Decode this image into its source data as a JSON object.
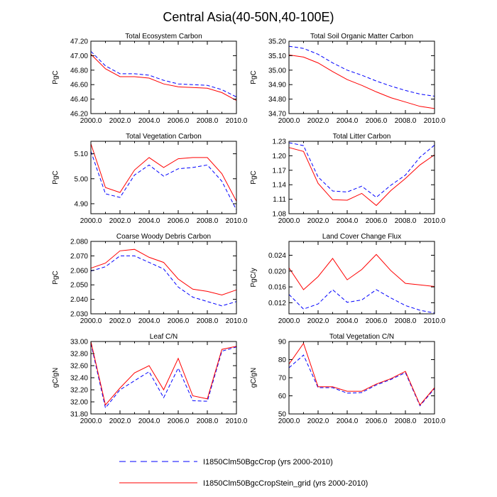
{
  "figure": {
    "title": "Central Asia(40-50N,40-100E)"
  },
  "legend": {
    "items": [
      {
        "label": "I1850Clm50BgcCrop (yrs 2000-2010)",
        "color": "#0000ff",
        "style": "dashed"
      },
      {
        "label": "I1850Clm50BgcCropStein_grid (yrs 2000-2010)",
        "color": "#ff0000",
        "style": "solid"
      }
    ]
  },
  "chart_data": [
    {
      "type": "line",
      "title": "Total Ecosystem Carbon",
      "ylabel": "PgC",
      "xlim": [
        2000,
        2010
      ],
      "ylim": [
        46.2,
        47.2
      ],
      "yticks": [
        46.2,
        46.4,
        46.6,
        46.8,
        47.0,
        47.2
      ],
      "ytick_labels": [
        "46.20",
        "46.40",
        "46.60",
        "46.80",
        "47.00",
        "47.20"
      ],
      "xticks": [
        2000,
        2002,
        2004,
        2006,
        2008,
        2010
      ],
      "xtick_labels": [
        "2000.0",
        "2002.0",
        "2004.0",
        "2006.0",
        "2008.0",
        "2010.0"
      ],
      "x": [
        2000,
        2001,
        2002,
        2003,
        2004,
        2005,
        2006,
        2007,
        2008,
        2009,
        2010
      ],
      "series": [
        {
          "values": [
            47.06,
            46.86,
            46.75,
            46.75,
            46.73,
            46.66,
            46.61,
            46.6,
            46.59,
            46.53,
            46.43
          ],
          "color": "#0000ff",
          "style": "dashed"
        },
        {
          "values": [
            47.02,
            46.82,
            46.71,
            46.71,
            46.69,
            46.61,
            46.57,
            46.56,
            46.55,
            46.49,
            46.38
          ],
          "color": "#ff0000",
          "style": "solid"
        }
      ]
    },
    {
      "type": "line",
      "title": "Total Soil Organic Matter Carbon",
      "ylabel": "PgC",
      "xlim": [
        2000,
        2010
      ],
      "ylim": [
        34.7,
        35.2
      ],
      "yticks": [
        34.7,
        34.8,
        34.9,
        35.0,
        35.1,
        35.2
      ],
      "ytick_labels": [
        "34.70",
        "34.80",
        "34.90",
        "35.00",
        "35.10",
        "35.20"
      ],
      "xticks": [
        2000,
        2002,
        2004,
        2006,
        2008,
        2010
      ],
      "xtick_labels": [
        "2000.0",
        "2002.0",
        "2004.0",
        "2006.0",
        "2008.0",
        "2010.0"
      ],
      "x": [
        2000,
        2001,
        2002,
        2003,
        2004,
        2005,
        2006,
        2007,
        2008,
        2009,
        2010
      ],
      "series": [
        {
          "values": [
            35.165,
            35.15,
            35.11,
            35.05,
            35.0,
            34.965,
            34.925,
            34.89,
            34.86,
            34.835,
            34.82
          ],
          "color": "#0000ff",
          "style": "dashed"
        },
        {
          "values": [
            35.105,
            35.09,
            35.05,
            34.99,
            34.935,
            34.895,
            34.85,
            34.81,
            34.78,
            34.75,
            34.735
          ],
          "color": "#ff0000",
          "style": "solid"
        }
      ]
    },
    {
      "type": "line",
      "title": "Total Vegetation Carbon",
      "ylabel": "PgC",
      "xlim": [
        2000,
        2010
      ],
      "ylim": [
        4.86,
        5.15
      ],
      "yticks": [
        4.9,
        5.0,
        5.1
      ],
      "ytick_labels": [
        "4.90",
        "5.00",
        "5.10"
      ],
      "xticks": [
        2000,
        2002,
        2004,
        2006,
        2008,
        2010
      ],
      "xtick_labels": [
        "2000.0",
        "2002.0",
        "2004.0",
        "2006.0",
        "2008.0",
        "2010.0"
      ],
      "x": [
        2000,
        2001,
        2002,
        2003,
        2004,
        2005,
        2006,
        2007,
        2008,
        2009,
        2010
      ],
      "series": [
        {
          "values": [
            5.11,
            4.94,
            4.925,
            5.015,
            5.055,
            5.01,
            5.04,
            5.045,
            5.055,
            4.99,
            4.875
          ],
          "color": "#0000ff",
          "style": "dashed"
        },
        {
          "values": [
            5.14,
            4.965,
            4.945,
            5.035,
            5.085,
            5.045,
            5.08,
            5.085,
            5.085,
            5.02,
            4.91
          ],
          "color": "#ff0000",
          "style": "solid"
        }
      ]
    },
    {
      "type": "line",
      "title": "Total Litter Carbon",
      "ylabel": "PgC",
      "xlim": [
        2000,
        2010
      ],
      "ylim": [
        1.08,
        1.23
      ],
      "yticks": [
        1.08,
        1.11,
        1.14,
        1.17,
        1.2,
        1.23
      ],
      "ytick_labels": [
        "1.08",
        "1.11",
        "1.14",
        "1.17",
        "1.20",
        "1.23"
      ],
      "xticks": [
        2000,
        2002,
        2004,
        2006,
        2008,
        2010
      ],
      "xtick_labels": [
        "2000.0",
        "2002.0",
        "2004.0",
        "2006.0",
        "2008.0",
        "2010.0"
      ],
      "x": [
        2000,
        2001,
        2002,
        2003,
        2004,
        2005,
        2006,
        2007,
        2008,
        2009,
        2010
      ],
      "series": [
        {
          "values": [
            1.227,
            1.221,
            1.156,
            1.127,
            1.125,
            1.137,
            1.114,
            1.139,
            1.16,
            1.197,
            1.222
          ],
          "color": "#0000ff",
          "style": "dashed"
        },
        {
          "values": [
            1.217,
            1.209,
            1.143,
            1.109,
            1.108,
            1.122,
            1.097,
            1.128,
            1.153,
            1.181,
            1.202
          ],
          "color": "#ff0000",
          "style": "solid"
        }
      ]
    },
    {
      "type": "line",
      "title": "Coarse Woody Debris Carbon",
      "ylabel": "PgC",
      "xlim": [
        2000,
        2010
      ],
      "ylim": [
        2.03,
        2.08
      ],
      "yticks": [
        2.03,
        2.04,
        2.05,
        2.06,
        2.07,
        2.08
      ],
      "ytick_labels": [
        "2.030",
        "2.040",
        "2.050",
        "2.060",
        "2.070",
        "2.080"
      ],
      "xticks": [
        2000,
        2002,
        2004,
        2006,
        2008,
        2010
      ],
      "xtick_labels": [
        "2000.0",
        "2002.0",
        "2004.0",
        "2006.0",
        "2008.0",
        "2010.0"
      ],
      "x": [
        2000,
        2001,
        2002,
        2003,
        2004,
        2005,
        2006,
        2007,
        2008,
        2009,
        2010
      ],
      "series": [
        {
          "values": [
            2.0595,
            2.0625,
            2.07,
            2.07,
            2.0655,
            2.061,
            2.0485,
            2.0415,
            2.0385,
            2.0355,
            2.0385
          ],
          "color": "#0000ff",
          "style": "dashed"
        },
        {
          "values": [
            2.0615,
            2.065,
            2.0735,
            2.0745,
            2.069,
            2.0655,
            2.054,
            2.047,
            2.0455,
            2.043,
            2.0465
          ],
          "color": "#ff0000",
          "style": "solid"
        }
      ]
    },
    {
      "type": "line",
      "title": "Land Cover Change Flux",
      "ylabel": "PgC/y",
      "xlim": [
        2000,
        2010
      ],
      "ylim": [
        0.0092,
        0.0275
      ],
      "yticks": [
        0.012,
        0.016,
        0.02,
        0.024
      ],
      "ytick_labels": [
        "0.012",
        "0.016",
        "0.020",
        "0.024"
      ],
      "xticks": [
        2000,
        2002,
        2004,
        2006,
        2008,
        2010
      ],
      "xtick_labels": [
        "2000.0",
        "2002.0",
        "2004.0",
        "2006.0",
        "2008.0",
        "2010.0"
      ],
      "x": [
        2000,
        2001,
        2002,
        2003,
        2004,
        2005,
        2006,
        2007,
        2008,
        2009,
        2010
      ],
      "series": [
        {
          "values": [
            0.0141,
            0.0104,
            0.0117,
            0.0153,
            0.0121,
            0.0127,
            0.0153,
            0.0132,
            0.0113,
            0.0101,
            0.0094
          ],
          "color": "#0000ff",
          "style": "dashed"
        },
        {
          "values": [
            0.0208,
            0.0153,
            0.0186,
            0.0232,
            0.0178,
            0.0204,
            0.0242,
            0.0201,
            0.0169,
            0.0165,
            0.0161
          ],
          "color": "#ff0000",
          "style": "solid"
        }
      ]
    },
    {
      "type": "line",
      "title": "Leaf C/N",
      "ylabel": "gC/gN",
      "xlim": [
        2000,
        2010
      ],
      "ylim": [
        31.8,
        33.0
      ],
      "yticks": [
        31.8,
        32.0,
        32.2,
        32.4,
        32.6,
        32.8,
        33.0
      ],
      "ytick_labels": [
        "31.80",
        "32.00",
        "32.20",
        "32.40",
        "32.60",
        "32.80",
        "33.00"
      ],
      "xticks": [
        2000,
        2002,
        2004,
        2006,
        2008,
        2010
      ],
      "xtick_labels": [
        "2000.0",
        "2002.0",
        "2004.0",
        "2006.0",
        "2008.0",
        "2010.0"
      ],
      "x": [
        2000,
        2001,
        2002,
        2003,
        2004,
        2005,
        2006,
        2007,
        2008,
        2009,
        2010
      ],
      "series": [
        {
          "values": [
            32.97,
            31.9,
            32.2,
            32.35,
            32.5,
            32.07,
            32.56,
            32.02,
            32.01,
            32.84,
            32.91
          ],
          "color": "#0000ff",
          "style": "dashed"
        },
        {
          "values": [
            33.0,
            31.95,
            32.23,
            32.48,
            32.6,
            32.2,
            32.72,
            32.1,
            32.05,
            32.87,
            32.92
          ],
          "color": "#ff0000",
          "style": "solid"
        }
      ]
    },
    {
      "type": "line",
      "title": "Total Vegetation C/N",
      "ylabel": "gC/gN",
      "xlim": [
        2000,
        2010
      ],
      "ylim": [
        50,
        90
      ],
      "yticks": [
        50,
        60,
        70,
        80,
        90
      ],
      "ytick_labels": [
        "50",
        "60",
        "70",
        "80",
        "90"
      ],
      "xticks": [
        2000,
        2002,
        2004,
        2006,
        2008,
        2010
      ],
      "xtick_labels": [
        "2000.0",
        "2002.0",
        "2004.0",
        "2006.0",
        "2008.0",
        "2010.0"
      ],
      "x": [
        2000,
        2001,
        2002,
        2003,
        2004,
        2005,
        2006,
        2007,
        2008,
        2009,
        2010
      ],
      "series": [
        {
          "values": [
            75.5,
            82.5,
            64.5,
            64.5,
            61.5,
            61.8,
            66,
            69,
            72.8,
            54.5,
            64
          ],
          "color": "#0000ff",
          "style": "dashed"
        },
        {
          "values": [
            77.5,
            89,
            65,
            65,
            62.5,
            62.5,
            66.5,
            69.5,
            73.5,
            55,
            64.5
          ],
          "color": "#ff0000",
          "style": "solid"
        }
      ]
    }
  ]
}
